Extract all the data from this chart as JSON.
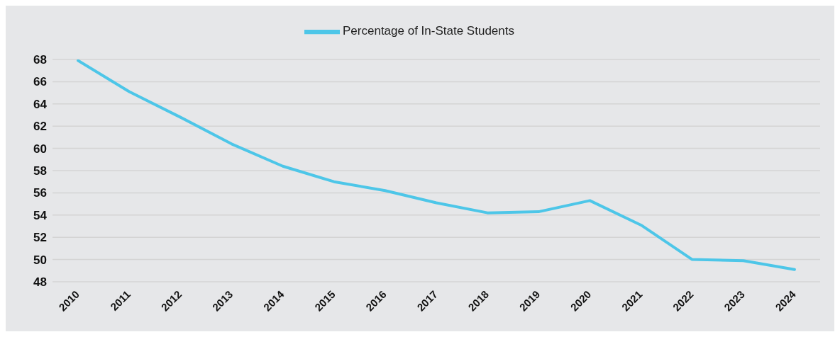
{
  "chart_data": {
    "type": "line",
    "categories": [
      "2010",
      "2011",
      "2012",
      "2013",
      "2014",
      "2015",
      "2016",
      "2017",
      "2018",
      "2019",
      "2020",
      "2021",
      "2022",
      "2023",
      "2024"
    ],
    "series": [
      {
        "name": "Percentage of In-State Students",
        "color": "#4dc6e8",
        "values": [
          67.9,
          65.1,
          62.8,
          60.4,
          58.4,
          57.0,
          56.2,
          55.1,
          54.2,
          54.3,
          55.3,
          53.1,
          50.0,
          49.9,
          49.1
        ]
      }
    ],
    "ylim": [
      48,
      68
    ],
    "yticks": [
      48,
      50,
      52,
      54,
      56,
      58,
      60,
      62,
      64,
      66,
      68
    ],
    "grid": "y",
    "legend": "top",
    "marker": "none",
    "line_style": "solid"
  }
}
